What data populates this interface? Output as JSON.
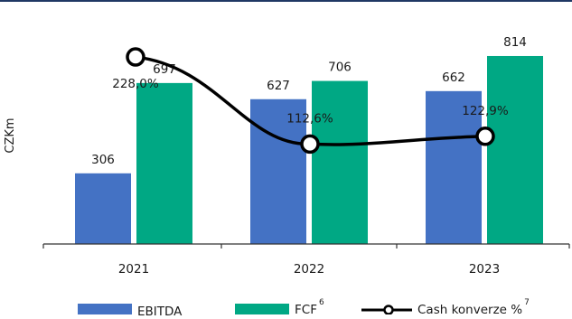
{
  "colors": {
    "ebitda": "#4472C4",
    "fcf": "#00A884",
    "line": "#000000",
    "topline": "#1F3864"
  },
  "chart_data": {
    "type": "bar",
    "categories": [
      "2021",
      "2022",
      "2023"
    ],
    "ylabel": "CZKm",
    "ylim": [
      0,
      900
    ],
    "series": [
      {
        "name": "EBITDA",
        "type": "bar",
        "values": [
          306,
          627,
          662
        ],
        "labels": [
          "306",
          "627",
          "662"
        ]
      },
      {
        "name": "FCF",
        "name_superscript": "6",
        "type": "bar",
        "values": [
          697,
          706,
          814
        ],
        "labels": [
          "697",
          "706",
          "814"
        ]
      },
      {
        "name": "Cash konverze %",
        "name_superscript": "7",
        "type": "line",
        "axis": "secondary",
        "values": [
          228.0,
          112.6,
          122.9
        ],
        "labels": [
          "228,0%",
          "112,6%",
          "122,9%"
        ]
      }
    ],
    "secondary_ylim": [
      40,
      270
    ],
    "legend": "bottom"
  }
}
